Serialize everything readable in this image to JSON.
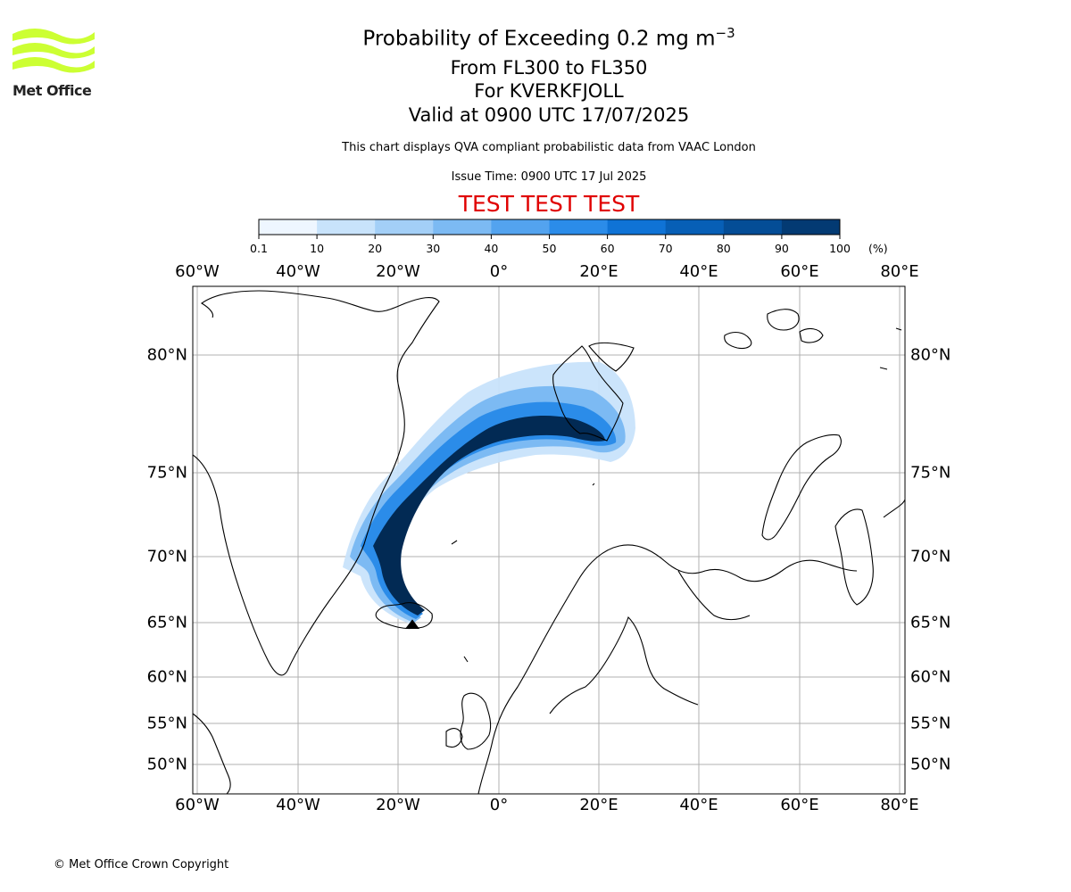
{
  "header": {
    "title_main": "Probability of Exceeding 0.2 mg m",
    "title_exponent": "−3",
    "levels": "From FL300 to FL350",
    "location": "For KVERKFJOLL",
    "valid": "Valid at 0900 UTC 17/07/2025",
    "description": "This chart displays QVA compliant probabilistic data from VAAC London",
    "issue_time": "Issue Time: 0900 UTC 17 Jul 2025",
    "test_banner": "TEST TEST TEST"
  },
  "logo": {
    "text": "Met Office",
    "color": "#ccff33"
  },
  "footer": {
    "copyright": "© Met Office Crown Copyright"
  },
  "colorbar": {
    "ticks": [
      "0.1",
      "10",
      "20",
      "30",
      "40",
      "50",
      "60",
      "70",
      "80",
      "90",
      "100"
    ],
    "unit": "(%)",
    "colors": [
      "#eef6ff",
      "#c8e3fb",
      "#a3cff7",
      "#7cbaf3",
      "#53a3ef",
      "#2b8ce9",
      "#0f73d6",
      "#075fb6",
      "#044d96",
      "#033a73",
      "#022a54"
    ]
  },
  "map": {
    "lon_labels": [
      "60°W",
      "40°W",
      "20°W",
      "0°",
      "20°E",
      "40°E",
      "60°E",
      "80°E"
    ],
    "lat_labels": [
      "80°N",
      "75°N",
      "70°N",
      "65°N",
      "60°N",
      "55°N",
      "50°N"
    ],
    "coastline_color": "#000000",
    "grid_color": "#b0b0b0"
  }
}
